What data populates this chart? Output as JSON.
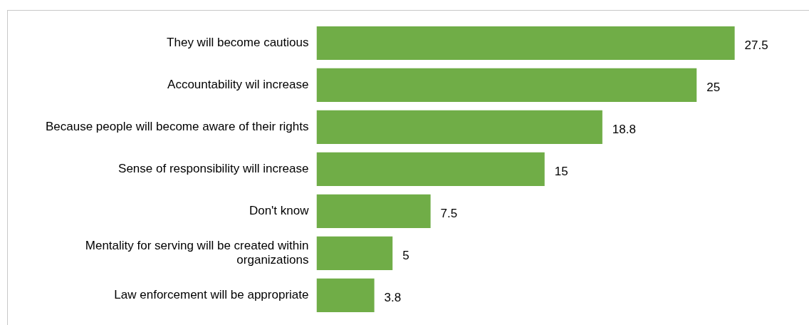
{
  "chart_data": {
    "type": "bar",
    "orientation": "horizontal",
    "categories": [
      "They will become cautious",
      "Accountability wil increase",
      "Because people will become aware of their rights",
      "Sense of responsibility will increase",
      "Don't know",
      "Mentality for serving will be created within organizations",
      "Law enforcement will be appropriate"
    ],
    "values": [
      27.5,
      25,
      18.8,
      15,
      7.5,
      5,
      3.8
    ],
    "color": "#70ad47",
    "data_labels": true,
    "legend": false,
    "tick_labels": "y"
  }
}
